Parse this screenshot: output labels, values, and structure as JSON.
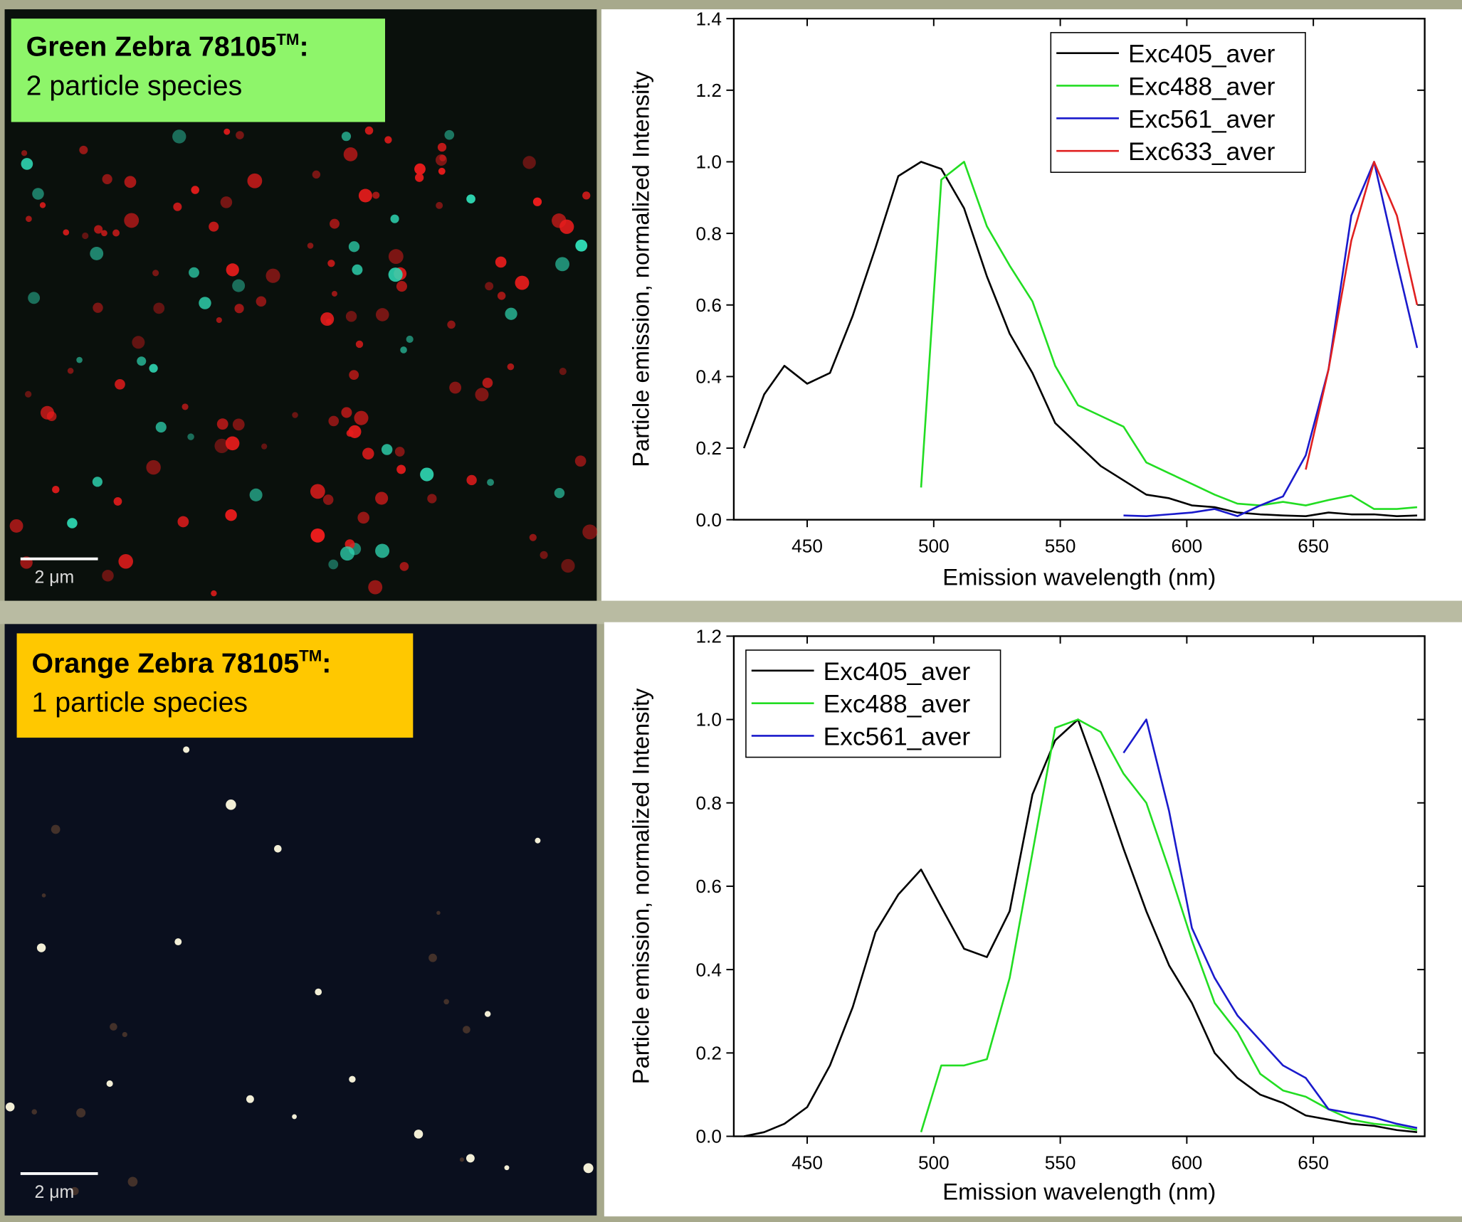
{
  "panels": [
    {
      "title": "Green Zebra 78105",
      "trademark": "TM",
      "colon": ":",
      "subtitle": "2 particle species",
      "scale_bar": "2 μm"
    },
    {
      "title": "Orange Zebra 78105",
      "trademark": "TM",
      "colon": ":",
      "subtitle": "1 particle species",
      "scale_bar": "2 μm"
    }
  ],
  "chart_data": [
    {
      "type": "line",
      "xlabel": "Emission wavelength (nm)",
      "ylabel": "Particle emission, normalized Intensity",
      "xlim": [
        421,
        694
      ],
      "ylim": [
        0,
        1.4
      ],
      "xticks": [
        450,
        500,
        550,
        600,
        650
      ],
      "yticks": [
        {
          "value": 0,
          "label": "0.0"
        },
        {
          "value": 0.2,
          "label": "0.2"
        },
        {
          "value": 0.4,
          "label": "0.4"
        },
        {
          "value": 0.6,
          "label": "0.6"
        },
        {
          "value": 0.8,
          "label": "0.8"
        },
        {
          "value": 1.0,
          "label": "1.0"
        },
        {
          "value": 1.2,
          "label": "1.2"
        },
        {
          "value": 1.4,
          "label": "1.4"
        }
      ],
      "legend": "upper right",
      "x": [
        425,
        433,
        441,
        450,
        459,
        468,
        477,
        486,
        495,
        503,
        512,
        521,
        530,
        539,
        548,
        557,
        566,
        575,
        584,
        593,
        602,
        611,
        620,
        629,
        638,
        647,
        656,
        665,
        674,
        683,
        691
      ],
      "series": [
        {
          "name": "Exc405_aver",
          "color": "#000000",
          "values": [
            0.2,
            0.35,
            0.43,
            0.38,
            0.41,
            0.57,
            0.76,
            0.96,
            1.0,
            0.98,
            0.87,
            0.68,
            0.52,
            0.41,
            0.27,
            0.21,
            0.15,
            0.11,
            0.07,
            0.06,
            0.04,
            0.035,
            0.02,
            0.015,
            0.012,
            0.01,
            0.02,
            0.015,
            0.015,
            0.01,
            0.012
          ]
        },
        {
          "name": "Exc488_aver",
          "color": "#22dd22",
          "values": [
            null,
            null,
            null,
            null,
            null,
            null,
            null,
            null,
            0.09,
            0.95,
            1.0,
            0.82,
            0.71,
            0.61,
            0.43,
            0.32,
            0.29,
            0.26,
            0.16,
            0.13,
            0.1,
            0.07,
            0.045,
            0.04,
            0.05,
            0.04,
            0.055,
            0.068,
            0.03,
            0.03,
            0.035
          ]
        },
        {
          "name": "Exc561_aver",
          "color": "#1a1acc",
          "values": [
            null,
            null,
            null,
            null,
            null,
            null,
            null,
            null,
            null,
            null,
            null,
            null,
            null,
            null,
            null,
            null,
            null,
            0.012,
            0.01,
            0.015,
            0.02,
            0.03,
            0.01,
            0.04,
            0.065,
            0.18,
            0.42,
            0.85,
            1.0,
            0.72,
            0.48
          ]
        },
        {
          "name": "Exc633_aver",
          "color": "#e02020",
          "values": [
            null,
            null,
            null,
            null,
            null,
            null,
            null,
            null,
            null,
            null,
            null,
            null,
            null,
            null,
            null,
            null,
            null,
            null,
            null,
            null,
            null,
            null,
            null,
            null,
            null,
            0.14,
            0.42,
            0.78,
            1.0,
            0.85,
            0.6
          ]
        }
      ]
    },
    {
      "type": "line",
      "xlabel": "Emission wavelength (nm)",
      "ylabel": "Particle emission, normalized Intensity",
      "xlim": [
        421,
        694
      ],
      "ylim": [
        0,
        1.2
      ],
      "xticks": [
        450,
        500,
        550,
        600,
        650
      ],
      "yticks": [
        {
          "value": 0,
          "label": "0.0"
        },
        {
          "value": 0.2,
          "label": "0.2"
        },
        {
          "value": 0.4,
          "label": "0.4"
        },
        {
          "value": 0.6,
          "label": "0.6"
        },
        {
          "value": 0.8,
          "label": "0.8"
        },
        {
          "value": 1.0,
          "label": "1.0"
        },
        {
          "value": 1.2,
          "label": "1.2"
        }
      ],
      "legend": "upper left",
      "x": [
        425,
        433,
        441,
        450,
        459,
        468,
        477,
        486,
        495,
        503,
        512,
        521,
        530,
        539,
        548,
        557,
        566,
        575,
        584,
        593,
        602,
        611,
        620,
        629,
        638,
        647,
        656,
        665,
        674,
        683,
        691
      ],
      "series": [
        {
          "name": "Exc405_aver",
          "color": "#000000",
          "values": [
            0.0,
            0.01,
            0.03,
            0.07,
            0.17,
            0.31,
            0.49,
            0.58,
            0.64,
            0.55,
            0.45,
            0.43,
            0.54,
            0.82,
            0.95,
            1.0,
            0.85,
            0.69,
            0.54,
            0.41,
            0.32,
            0.2,
            0.14,
            0.1,
            0.08,
            0.05,
            0.04,
            0.03,
            0.025,
            0.015,
            0.01
          ]
        },
        {
          "name": "Exc488_aver",
          "color": "#22dd22",
          "values": [
            null,
            null,
            null,
            null,
            null,
            null,
            null,
            null,
            0.01,
            0.17,
            0.17,
            0.185,
            0.38,
            0.68,
            0.98,
            1.0,
            0.97,
            0.87,
            0.8,
            0.64,
            0.47,
            0.32,
            0.25,
            0.15,
            0.11,
            0.095,
            0.065,
            0.04,
            0.03,
            0.025,
            0.015
          ]
        },
        {
          "name": "Exc561_aver",
          "color": "#1a1acc",
          "values": [
            null,
            null,
            null,
            null,
            null,
            null,
            null,
            null,
            null,
            null,
            null,
            null,
            null,
            null,
            null,
            null,
            null,
            0.92,
            1.0,
            0.78,
            0.5,
            0.38,
            0.29,
            0.23,
            0.17,
            0.14,
            0.065,
            0.055,
            0.045,
            0.03,
            0.02
          ]
        }
      ]
    }
  ]
}
